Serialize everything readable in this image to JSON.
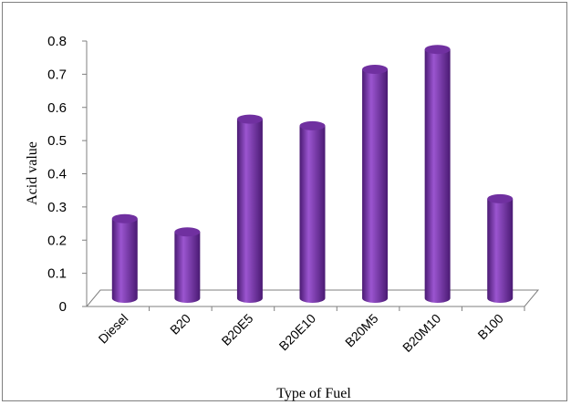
{
  "chart_data": {
    "type": "bar",
    "title": "",
    "xlabel": "Type of Fuel",
    "ylabel": "Acid value",
    "categories": [
      "Diesel",
      "B20",
      "B20E5",
      "B20E10",
      "B20M5",
      "B20M10",
      "B100"
    ],
    "values": [
      0.24,
      0.2,
      0.54,
      0.52,
      0.69,
      0.75,
      0.3
    ],
    "ylim": [
      0,
      0.8
    ],
    "yticks": [
      "0",
      "0.1",
      "0.2",
      "0.3",
      "0.4",
      "0.5",
      "0.6",
      "0.7",
      "0.8"
    ],
    "grid": false,
    "legend": "none",
    "bar_style": "3d-cylinder",
    "colors": {
      "bar": "#7030A0",
      "bar_dark": "#4a1a73",
      "bar_light": "#9b55d0",
      "floor": "#ffffff",
      "axis": "#7f7f7f"
    }
  }
}
